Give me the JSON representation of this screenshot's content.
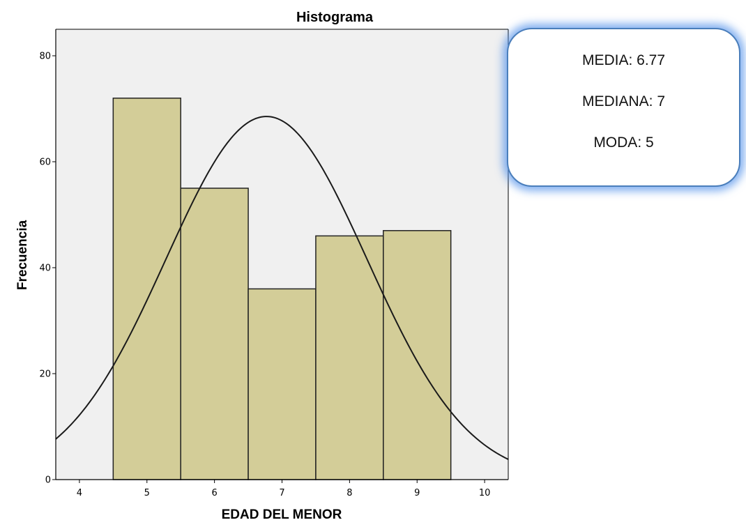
{
  "chart_data": {
    "type": "bar",
    "title": "Histograma",
    "xlabel": "EDAD DEL MENOR",
    "ylabel": "Frecuencia",
    "categories": [
      "5",
      "6",
      "7",
      "8",
      "9"
    ],
    "bins": [
      {
        "center": 5,
        "from": 4.5,
        "to": 5.5,
        "value": 72
      },
      {
        "center": 6,
        "from": 5.5,
        "to": 6.5,
        "value": 55
      },
      {
        "center": 7,
        "from": 6.5,
        "to": 7.5,
        "value": 36
      },
      {
        "center": 8,
        "from": 7.5,
        "to": 8.5,
        "value": 46
      },
      {
        "center": 9,
        "from": 8.5,
        "to": 9.5,
        "value": 47
      }
    ],
    "xlim": [
      3.65,
      10.35
    ],
    "ylim": [
      0,
      85
    ],
    "xticks": [
      4,
      5,
      6,
      7,
      8,
      9,
      10
    ],
    "yticks": [
      0,
      20,
      40,
      60,
      80
    ],
    "normal_curve": {
      "mean": 6.77,
      "sd": 1.49,
      "n": 256,
      "bin_width": 1
    },
    "grid": false,
    "colors": {
      "bar_fill": "#d3cd98",
      "bar_edge": "#222222",
      "plot_background": "#f0f0f0",
      "curve": "#1a1a1a"
    }
  },
  "stats": {
    "media": "MEDIA: 6.77",
    "mediana": "MEDIANA: 7",
    "moda": "MODA: 5"
  }
}
